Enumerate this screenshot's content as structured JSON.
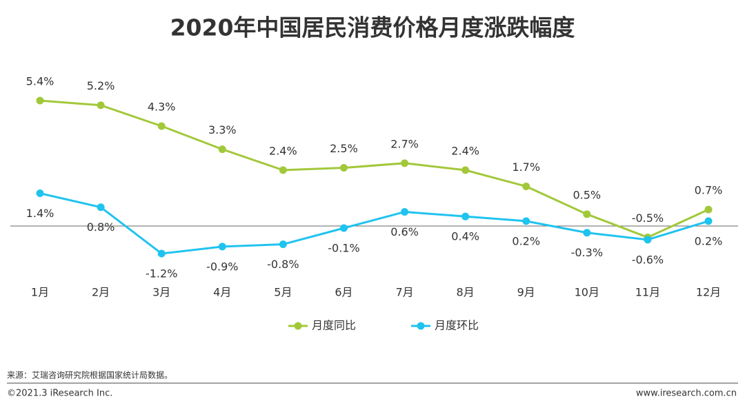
{
  "chart_data": {
    "type": "line",
    "title": "2020年中国居民消费价格月度涨跌幅度",
    "categories": [
      "1月",
      "2月",
      "3月",
      "4月",
      "5月",
      "6月",
      "7月",
      "8月",
      "9月",
      "10月",
      "11月",
      "12月"
    ],
    "series": [
      {
        "name": "月度同比",
        "color": "#a2c83a",
        "values": [
          5.4,
          5.2,
          4.3,
          3.3,
          2.4,
          2.5,
          2.7,
          2.4,
          1.7,
          0.5,
          -0.5,
          0.7
        ],
        "value_labels": [
          "5.4%",
          "5.2%",
          "4.3%",
          "3.3%",
          "2.4%",
          "2.5%",
          "2.7%",
          "2.4%",
          "1.7%",
          "0.5%",
          "-0.5%",
          "0.7%"
        ]
      },
      {
        "name": "月度环比",
        "color": "#1fc3ef",
        "values": [
          1.4,
          0.8,
          -1.2,
          -0.9,
          -0.8,
          -0.1,
          0.6,
          0.4,
          0.2,
          -0.3,
          -0.6,
          0.2
        ],
        "value_labels": [
          "1.4%",
          "0.8%",
          "-1.2%",
          "-0.9%",
          "-0.8%",
          "-0.1%",
          "0.6%",
          "0.4%",
          "0.2%",
          "-0.3%",
          "-0.6%",
          "0.2%"
        ]
      }
    ],
    "legend": "bottom"
  },
  "footer": {
    "source": "来源：艾瑞咨询研究院根据国家统计局数据。",
    "copyright": "©2021.3 iResearch Inc.",
    "website": "www.iresearch.com.cn"
  }
}
